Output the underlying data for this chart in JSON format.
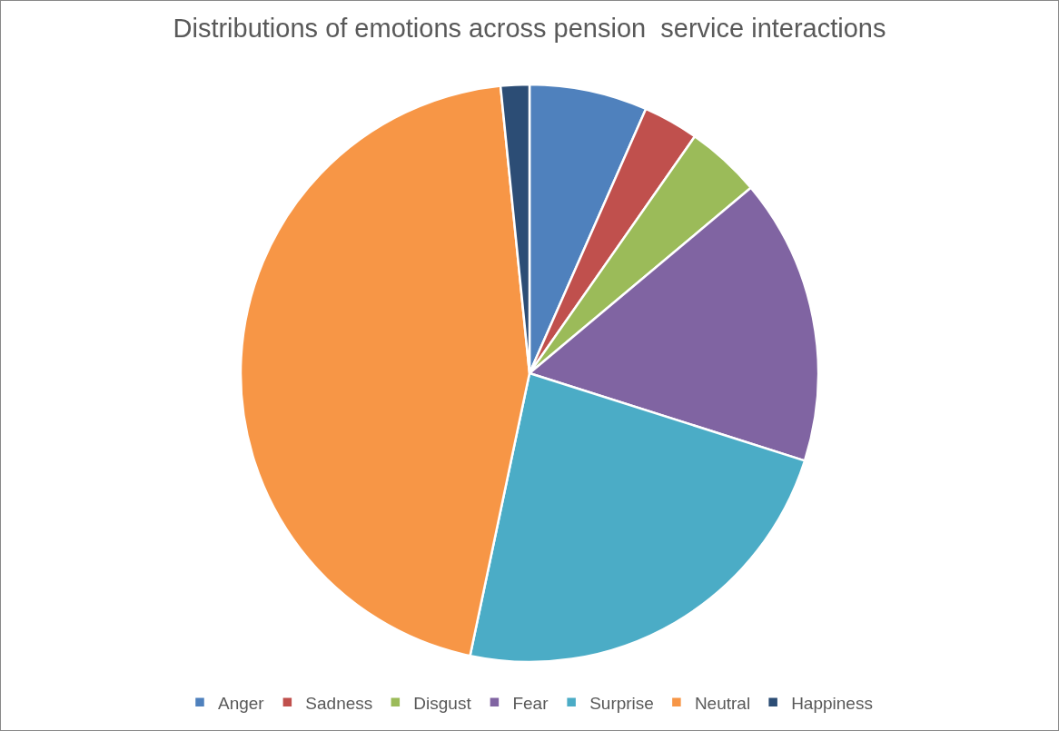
{
  "chart_data": {
    "type": "pie",
    "title": "Distributions of emotions across pension  service interactions",
    "categories": [
      "Anger",
      "Sadness",
      "Disgust",
      "Fear",
      "Surprise",
      "Neutral",
      "Happiness"
    ],
    "values": [
      6.6,
      3.1,
      4.2,
      16.0,
      23.4,
      45.1,
      1.6
    ],
    "colors": [
      "#4f81bd",
      "#c0504d",
      "#9bbb59",
      "#8064a2",
      "#4bacc6",
      "#f79646",
      "#2c4d75"
    ],
    "legend": "bottom"
  }
}
